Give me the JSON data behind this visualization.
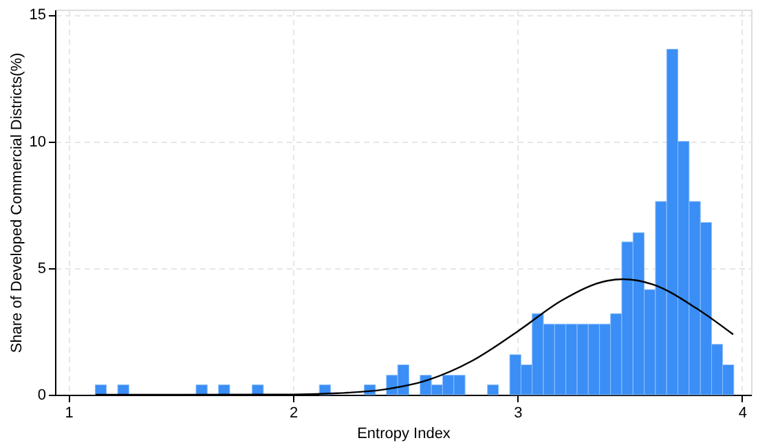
{
  "chart_data": {
    "type": "histogram",
    "xlabel": "Entropy Index",
    "ylabel": "Share of Developed Commercial Districts(%)",
    "bins": [
      1.119,
      1.169,
      1.219,
      1.269,
      1.319,
      1.369,
      1.418,
      1.468,
      1.518,
      1.568,
      1.618,
      1.668,
      1.718,
      1.768,
      1.818,
      1.868,
      1.917,
      1.967,
      2.017,
      2.067,
      2.117,
      2.167,
      2.217,
      2.267,
      2.317,
      2.367,
      2.416,
      2.466,
      2.516,
      2.566,
      2.616,
      2.666,
      2.716,
      2.766,
      2.816,
      2.866,
      2.915,
      2.965,
      3.015,
      3.065,
      3.115,
      3.165,
      3.215,
      3.265,
      3.315,
      3.365,
      3.414,
      3.464,
      3.514,
      3.564,
      3.614,
      3.664,
      3.714,
      3.764,
      3.814,
      3.864,
      3.913,
      3.963
    ],
    "series": [
      {
        "color": "#3a8ef5",
        "values": [
          0.39,
          0,
          0.39,
          0,
          0,
          0,
          0,
          0,
          0,
          0.39,
          0,
          0.39,
          0,
          0,
          0.39,
          0,
          0,
          0,
          0,
          0,
          0.39,
          0,
          0,
          0,
          0.39,
          0,
          0.77,
          1.18,
          0,
          0.77,
          0.39,
          0.77,
          0.77,
          0,
          0,
          0.39,
          0,
          1.58,
          1.18,
          3.2,
          2.79,
          2.79,
          2.79,
          2.79,
          2.79,
          2.79,
          3.2,
          6.03,
          6.4,
          4.15,
          7.63,
          13.64,
          10.0,
          7.63,
          6.8,
          1.99,
          1.18
        ]
      },
      {
        "type": "line",
        "color": "#000000",
        "x": [
          1.12,
          1.5,
          2.0,
          2.2,
          2.4,
          2.6,
          2.8,
          3.0,
          3.2,
          3.4,
          3.47,
          3.6,
          3.8,
          3.96
        ],
        "values": [
          0,
          0,
          0.01,
          0.06,
          0.2,
          0.58,
          1.35,
          2.5,
          3.74,
          4.5,
          4.56,
          4.36,
          3.39,
          2.38
        ]
      }
    ],
    "xlim": [
      0.94,
      4.04
    ],
    "xticks": [
      1,
      2,
      3,
      4
    ],
    "ylim": [
      0,
      15.2
    ],
    "yticks": [
      0,
      5,
      10,
      15
    ],
    "grid": true
  }
}
